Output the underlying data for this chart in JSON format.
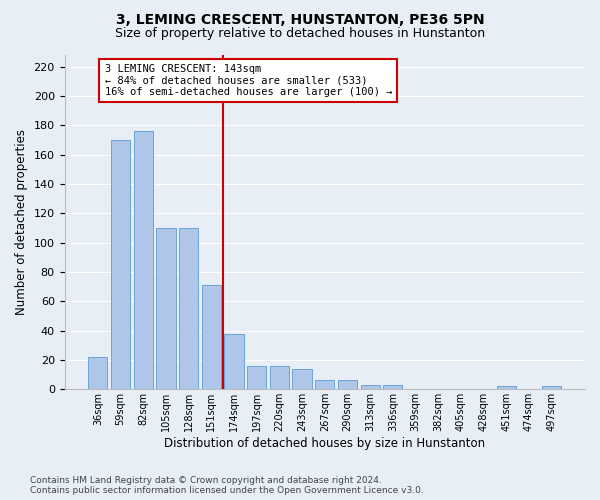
{
  "title": "3, LEMING CRESCENT, HUNSTANTON, PE36 5PN",
  "subtitle": "Size of property relative to detached houses in Hunstanton",
  "xlabel": "Distribution of detached houses by size in Hunstanton",
  "ylabel": "Number of detached properties",
  "categories": [
    "36sqm",
    "59sqm",
    "82sqm",
    "105sqm",
    "128sqm",
    "151sqm",
    "174sqm",
    "197sqm",
    "220sqm",
    "243sqm",
    "267sqm",
    "290sqm",
    "313sqm",
    "336sqm",
    "359sqm",
    "382sqm",
    "405sqm",
    "428sqm",
    "451sqm",
    "474sqm",
    "497sqm"
  ],
  "values": [
    22,
    170,
    176,
    110,
    110,
    71,
    38,
    16,
    16,
    14,
    6,
    6,
    3,
    3,
    0,
    0,
    0,
    0,
    2,
    0,
    2
  ],
  "bar_color": "#aec6e8",
  "bar_edge_color": "#5b9bd5",
  "vline_x": 5.5,
  "marker_label": "3 LEMING CRESCENT: 143sqm",
  "annotation_line1": "← 84% of detached houses are smaller (533)",
  "annotation_line2": "16% of semi-detached houses are larger (100) →",
  "annotation_box_color": "#ffffff",
  "annotation_box_edge_color": "#cc0000",
  "vline_color": "#cc0000",
  "ylim": [
    0,
    228
  ],
  "yticks": [
    0,
    20,
    40,
    60,
    80,
    100,
    120,
    140,
    160,
    180,
    200,
    220
  ],
  "title_fontsize": 10,
  "subtitle_fontsize": 9,
  "xlabel_fontsize": 8.5,
  "ylabel_fontsize": 8.5,
  "tick_fontsize": 8,
  "xtick_fontsize": 7,
  "footer_line1": "Contains HM Land Registry data © Crown copyright and database right 2024.",
  "footer_line2": "Contains public sector information licensed under the Open Government Licence v3.0.",
  "background_color": "#e8eef5",
  "plot_background_color": "#e8eef5"
}
